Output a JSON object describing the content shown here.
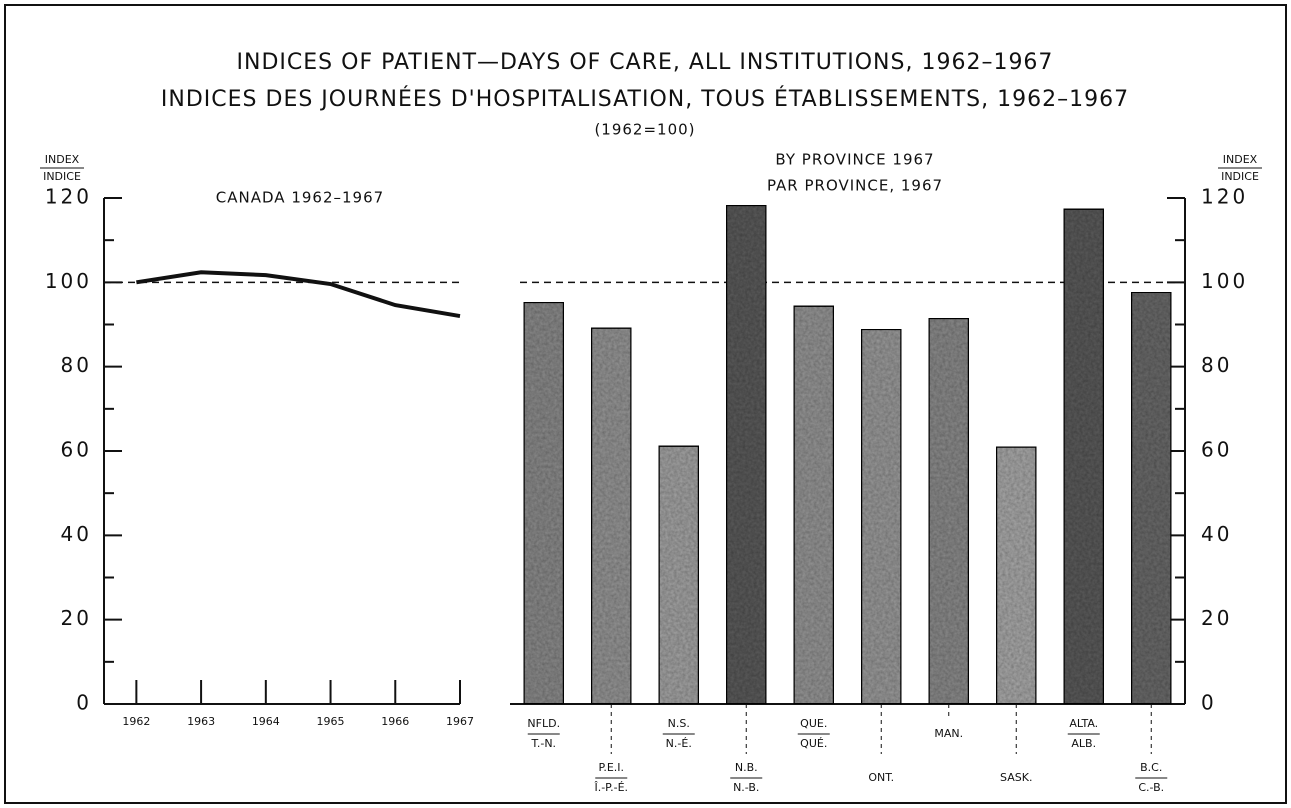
{
  "header": {
    "title_en": "INDICES OF PATIENT—DAYS OF CARE, ALL INSTITUTIONS, 1962–1967",
    "title_fr": "INDICES DES JOURNÉES D'HOSPITALISATION, TOUS ÉTABLISSEMENTS, 1962–1967",
    "base": "(1962=100)"
  },
  "chart_data": [
    {
      "type": "line",
      "title": "CANADA 1962–1967",
      "ylabel": [
        "INDEX",
        "INDICE"
      ],
      "x": [
        1962,
        1963,
        1964,
        1965,
        1966,
        1967
      ],
      "values": [
        100,
        102.4,
        101.7,
        99.6,
        94.6,
        92
      ],
      "color": "#111",
      "xlim": [
        1961.5,
        1967
      ],
      "xticks": [
        1962,
        1963,
        1964,
        1965,
        1966,
        1967
      ],
      "ylim": [
        0,
        120
      ],
      "yticks": [
        0,
        20,
        40,
        60,
        80,
        100,
        120
      ],
      "minor_yticks": [
        10,
        30,
        50,
        70,
        90,
        110
      ],
      "reference_line": 100
    },
    {
      "type": "bar",
      "title": [
        "BY PROVINCE 1967",
        "PAR PROVINCE, 1967"
      ],
      "ylabel": [
        "INDEX",
        "INDICE"
      ],
      "categories": [
        [
          "NFLD.",
          "T.-N."
        ],
        [
          "P.E.I.",
          "Î.-P.-É."
        ],
        [
          "N.S.",
          "N.-É."
        ],
        [
          "N.B.",
          "N.-B."
        ],
        [
          "QUE.",
          "QUÉ."
        ],
        [
          "ONT."
        ],
        [
          "MAN."
        ],
        [
          "SASK."
        ],
        [
          "ALTA.",
          "ALB."
        ],
        [
          "B.C.",
          "C.-B."
        ]
      ],
      "values": [
        95.3,
        89.2,
        61.2,
        118.3,
        94.4,
        88.9,
        91.5,
        61,
        117.4,
        97.7
      ],
      "colors": [
        "#8a8a8a",
        "#959595",
        "#a3a3a3",
        "#5c5c5c",
        "#959595",
        "#9a9a9a",
        "#8a8a8a",
        "#a8a8a8",
        "#5c5c5c",
        "#6a6a6a"
      ],
      "ylim": [
        0,
        120
      ],
      "yticks": [
        0,
        20,
        40,
        60,
        80,
        100,
        120
      ],
      "minor_yticks": [
        10,
        30,
        50,
        70,
        90,
        110
      ],
      "reference_line": 100
    }
  ]
}
